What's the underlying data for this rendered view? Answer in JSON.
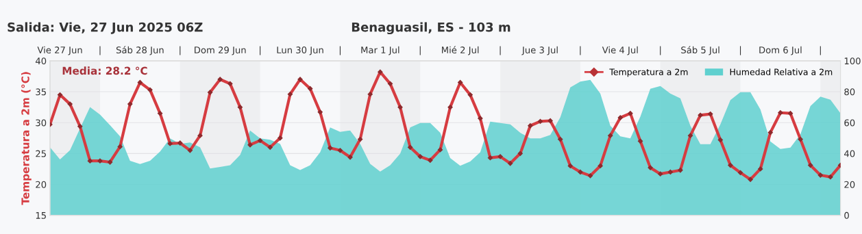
{
  "chart_data": {
    "type": "line",
    "title": "Benaguasil, ES - 103 m",
    "subtitle": "Salida: Vie, 27 Jun 2025 06Z",
    "ylabel": "Temperatura a 2m (°C)",
    "annotations": [
      "Media: 28.2 °C"
    ],
    "x": [
      "2025-06-27T09:00",
      "2025-06-27T12:00",
      "2025-06-27T15:00",
      "2025-06-27T18:00",
      "2025-06-27T21:00",
      "2025-06-28T00:00",
      "2025-06-28T03:00",
      "2025-06-28T06:00",
      "2025-06-28T09:00",
      "2025-06-28T12:00",
      "2025-06-28T15:00",
      "2025-06-28T18:00",
      "2025-06-28T21:00",
      "2025-06-29T00:00",
      "2025-06-29T03:00",
      "2025-06-29T06:00",
      "2025-06-29T09:00",
      "2025-06-29T12:00",
      "2025-06-29T15:00",
      "2025-06-29T18:00",
      "2025-06-29T21:00",
      "2025-06-30T00:00",
      "2025-06-30T03:00",
      "2025-06-30T06:00",
      "2025-06-30T09:00",
      "2025-06-30T12:00",
      "2025-06-30T15:00",
      "2025-06-30T18:00",
      "2025-06-30T21:00",
      "2025-07-01T00:00",
      "2025-07-01T03:00",
      "2025-07-01T06:00",
      "2025-07-01T09:00",
      "2025-07-01T12:00",
      "2025-07-01T15:00",
      "2025-07-01T18:00",
      "2025-07-01T21:00",
      "2025-07-02T00:00",
      "2025-07-02T03:00",
      "2025-07-02T06:00",
      "2025-07-02T09:00",
      "2025-07-02T12:00",
      "2025-07-02T15:00",
      "2025-07-02T18:00",
      "2025-07-02T21:00",
      "2025-07-03T00:00",
      "2025-07-03T03:00",
      "2025-07-03T06:00",
      "2025-07-03T09:00",
      "2025-07-03T12:00",
      "2025-07-03T15:00",
      "2025-07-03T18:00",
      "2025-07-03T21:00",
      "2025-07-04T00:00",
      "2025-07-04T03:00",
      "2025-07-04T06:00",
      "2025-07-04T09:00",
      "2025-07-04T12:00",
      "2025-07-04T15:00",
      "2025-07-04T18:00",
      "2025-07-04T21:00",
      "2025-07-05T00:00",
      "2025-07-05T03:00",
      "2025-07-05T06:00",
      "2025-07-05T09:00",
      "2025-07-05T12:00",
      "2025-07-05T15:00",
      "2025-07-05T18:00",
      "2025-07-05T21:00",
      "2025-07-06T00:00",
      "2025-07-06T03:00",
      "2025-07-06T06:00",
      "2025-07-06T09:00",
      "2025-07-06T12:00",
      "2025-07-06T15:00",
      "2025-07-06T18:00",
      "2025-07-06T21:00",
      "2025-07-07T00:00",
      "2025-07-07T03:00",
      "2025-07-07T06:00"
    ],
    "xlim": [
      "2025-06-27T09:00",
      "2025-07-07T06:00"
    ],
    "xticks": [
      {
        "value": "2025-06-27T12:00",
        "label": "Vie 27 Jun"
      },
      {
        "value": "2025-06-28T00:00",
        "label": "|"
      },
      {
        "value": "2025-06-28T12:00",
        "label": "Sáb 28 Jun"
      },
      {
        "value": "2025-06-29T00:00",
        "label": "|"
      },
      {
        "value": "2025-06-29T12:00",
        "label": "Dom 29 Jun"
      },
      {
        "value": "2025-06-30T00:00",
        "label": "|"
      },
      {
        "value": "2025-06-30T12:00",
        "label": "Lun 30 Jun"
      },
      {
        "value": "2025-07-01T00:00",
        "label": "|"
      },
      {
        "value": "2025-07-01T12:00",
        "label": "Mar 1 Jul"
      },
      {
        "value": "2025-07-02T00:00",
        "label": "|"
      },
      {
        "value": "2025-07-02T12:00",
        "label": "Mié 2 Jul"
      },
      {
        "value": "2025-07-03T00:00",
        "label": "|"
      },
      {
        "value": "2025-07-03T12:00",
        "label": "Jue 3 Jul"
      },
      {
        "value": "2025-07-04T00:00",
        "label": "|"
      },
      {
        "value": "2025-07-04T12:00",
        "label": "Vie 4 Jul"
      },
      {
        "value": "2025-07-05T00:00",
        "label": "|"
      },
      {
        "value": "2025-07-05T12:00",
        "label": "Sáb 5 Jul"
      },
      {
        "value": "2025-07-06T00:00",
        "label": "|"
      },
      {
        "value": "2025-07-06T12:00",
        "label": "Dom 6 Jul"
      },
      {
        "value": "2025-07-07T00:00",
        "label": "|"
      }
    ],
    "ylim": [
      15,
      40
    ],
    "yticks": [
      15,
      20,
      25,
      30,
      35,
      40
    ],
    "y2lim": [
      0,
      100
    ],
    "y2ticks": [
      0,
      20,
      40,
      60,
      80,
      100
    ],
    "series": [
      {
        "name": "Humedad Relativa a 2m",
        "type": "area",
        "axis": "y2",
        "color": "#5fd0cf",
        "values": [
          44.0,
          36.2,
          42.2,
          56.2,
          70.1,
          65.2,
          58.3,
          51.1,
          35.3,
          33.2,
          35.3,
          41.3,
          49.8,
          46.2,
          47.1,
          44.0,
          30.3,
          31.3,
          32.4,
          39.1,
          54.9,
          49.8,
          48.9,
          46.2,
          32.4,
          29.3,
          32.4,
          40.8,
          56.9,
          54.0,
          54.9,
          46.2,
          33.3,
          28.3,
          32.4,
          39.9,
          56.9,
          59.8,
          59.8,
          53.4,
          37.1,
          32.1,
          34.8,
          40.8,
          60.7,
          59.8,
          58.9,
          53.4,
          49.8,
          49.8,
          52.0,
          63.4,
          82.8,
          86.6,
          87.7,
          78.8,
          58.0,
          51.1,
          49.8,
          63.9,
          81.9,
          83.7,
          78.8,
          75.7,
          58.0,
          46.0,
          46.0,
          58.9,
          74.6,
          79.7,
          79.7,
          68.5,
          47.8,
          42.9,
          43.8,
          52.5,
          70.7,
          76.8,
          74.8,
          66.1
        ]
      },
      {
        "name": "Temperatura a 2m",
        "marker": "diamond",
        "color": "#d63c41",
        "values": [
          29.7,
          34.5,
          33.0,
          29.4,
          23.8,
          23.8,
          23.6,
          26.1,
          33.0,
          36.5,
          35.3,
          31.5,
          26.6,
          26.7,
          25.5,
          27.9,
          34.9,
          37.0,
          36.3,
          32.5,
          26.4,
          27.1,
          26.0,
          27.5,
          34.6,
          37.0,
          35.5,
          31.7,
          25.9,
          25.5,
          24.4,
          27.3,
          34.6,
          38.2,
          36.3,
          32.5,
          26.0,
          24.5,
          23.9,
          25.6,
          32.5,
          36.5,
          34.5,
          30.7,
          24.3,
          24.5,
          23.4,
          25.0,
          29.5,
          30.2,
          30.3,
          27.3,
          23.0,
          22.0,
          21.4,
          23.0,
          27.9,
          30.8,
          31.5,
          27.0,
          22.7,
          21.7,
          22.0,
          22.3,
          27.9,
          31.2,
          31.4,
          27.2,
          23.1,
          21.9,
          20.8,
          22.5,
          28.4,
          31.6,
          31.5,
          27.3,
          23.1,
          21.5,
          21.2,
          23.1
        ]
      }
    ],
    "bands": [
      {
        "axis": "x",
        "from": "2025-06-27T09:00",
        "to": "2025-06-28T00:00",
        "color": "#eeeff1"
      },
      {
        "axis": "x",
        "from": "2025-06-29T00:00",
        "to": "2025-06-30T00:00",
        "color": "#eeeff1"
      },
      {
        "axis": "x",
        "from": "2025-07-01T00:00",
        "to": "2025-07-02T00:00",
        "color": "#eeeff1"
      },
      {
        "axis": "x",
        "from": "2025-07-03T00:00",
        "to": "2025-07-04T00:00",
        "color": "#eeeff1"
      },
      {
        "axis": "x",
        "from": "2025-07-05T00:00",
        "to": "2025-07-06T00:00",
        "color": "#eeeff1"
      },
      {
        "axis": "x",
        "from": "2025-07-07T00:00",
        "to": "2025-07-07T06:00",
        "color": "#eeeff1"
      }
    ],
    "grid": "y",
    "legend": "top right"
  }
}
